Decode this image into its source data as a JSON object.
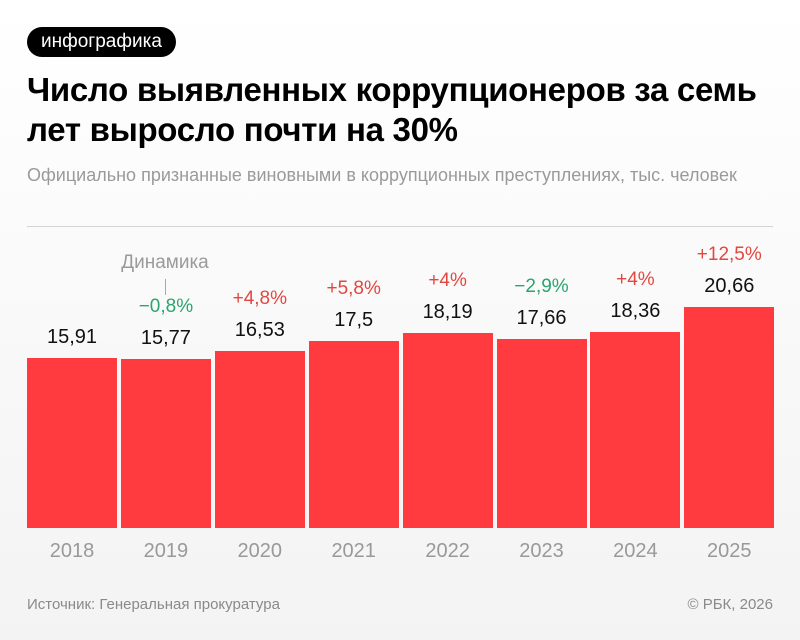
{
  "badge": "инфографика",
  "title": "Число выявленных коррупционеров за семь лет выросло почти на 30%",
  "subtitle": "Официально признанные виновными в коррупционных преступлениях, тыс. человек",
  "source": "Источник: Генеральная прокуратура",
  "copyright": "© РБК, 2026",
  "colors": {
    "bar": "#ff3b3f",
    "increase": "#e4473f",
    "decrease": "#2aa56f"
  },
  "chart_data": {
    "type": "bar",
    "categories": [
      "2018",
      "2019",
      "2020",
      "2021",
      "2022",
      "2023",
      "2024",
      "2025"
    ],
    "values": [
      15.91,
      15.77,
      16.53,
      17.5,
      18.19,
      17.66,
      18.36,
      20.66
    ],
    "value_labels": [
      "15,91",
      "15,77",
      "16,53",
      "17,5",
      "18,19",
      "17,66",
      "18,36",
      "20,66"
    ],
    "change_labels": [
      "",
      "−0,8%",
      "+4,8%",
      "+5,8%",
      "+4%",
      "−2,9%",
      "+4%",
      "+12,5%"
    ],
    "change_annotation": "Динамика",
    "ylim": [
      0,
      22
    ],
    "grid": false
  }
}
